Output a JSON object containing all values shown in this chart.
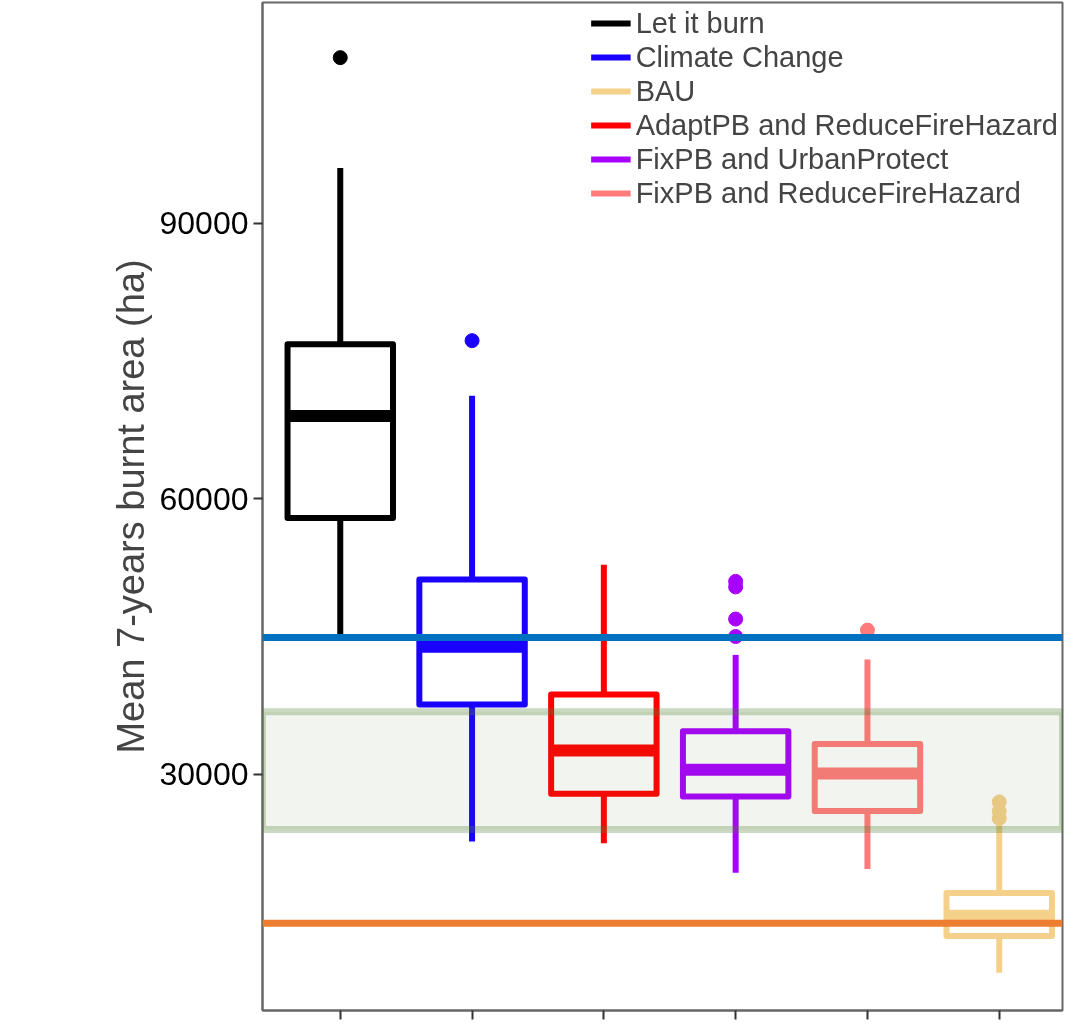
{
  "chart_data": {
    "type": "box",
    "ylabel": "Mean 7-years burnt area (ha)",
    "categories": [
      null,
      null,
      null,
      null,
      null,
      null
    ],
    "ylim": [
      4300,
      114000
    ],
    "yticks": [
      30000,
      60000,
      90000
    ],
    "tick_labels": "y",
    "grid": false,
    "legend": "top right",
    "series": [
      {
        "name": "Let it burn",
        "color": "#000000",
        "boxes": [
          {
            "low": 45000,
            "q1": 57900,
            "median": 69000,
            "q3": 76800,
            "high": 96000,
            "outliers": [
              108000
            ]
          },
          null,
          null,
          null,
          null,
          null
        ]
      },
      {
        "name": "Climate Change",
        "color": "#1a00ff",
        "boxes": [
          null,
          {
            "low": 22700,
            "q1": 37600,
            "median": 43900,
            "q3": 51200,
            "high": 71200,
            "outliers": [
              77200
            ]
          },
          null,
          null,
          null,
          null
        ]
      },
      {
        "name": "BAU",
        "color": "#f5d08a",
        "boxes": [
          null,
          null,
          null,
          null,
          null,
          {
            "low": 8400,
            "q1": 12400,
            "median": 14600,
            "q3": 17100,
            "high": 24400,
            "outliers": [
              25200,
              26000,
              27000
            ]
          }
        ]
      },
      {
        "name": "AdaptPB and ReduceFireHazard",
        "color": "#ff0000",
        "boxes": [
          null,
          null,
          {
            "low": 22500,
            "q1": 27900,
            "median": 32600,
            "q3": 38700,
            "high": 52800
          },
          null,
          null,
          null
        ]
      },
      {
        "name": "FixPB and UrbanProtect",
        "color": "#a800ff",
        "boxes": [
          null,
          null,
          null,
          {
            "low": 19300,
            "q1": 27600,
            "median": 30500,
            "q3": 34700,
            "high": 43000,
            "outliers": [
              45000,
              46900,
              50400,
              51000
            ]
          },
          null,
          null
        ]
      },
      {
        "name": "FixPB and ReduceFireHazard",
        "color": "#ff7b7b",
        "boxes": [
          null,
          null,
          null,
          null,
          {
            "low": 19700,
            "q1": 26000,
            "median": 30100,
            "q3": 33300,
            "high": 42500,
            "outliers": [
              45700
            ]
          },
          null
        ]
      }
    ],
    "ref_lines": [
      {
        "axis": "y",
        "value": 44900,
        "color": "#0070c0"
      },
      {
        "axis": "y",
        "value": 13800,
        "color": "#ed7d31"
      }
    ],
    "bands": [
      {
        "axis": "y",
        "from": 24000,
        "to": 36800,
        "color": "#548235"
      }
    ]
  }
}
